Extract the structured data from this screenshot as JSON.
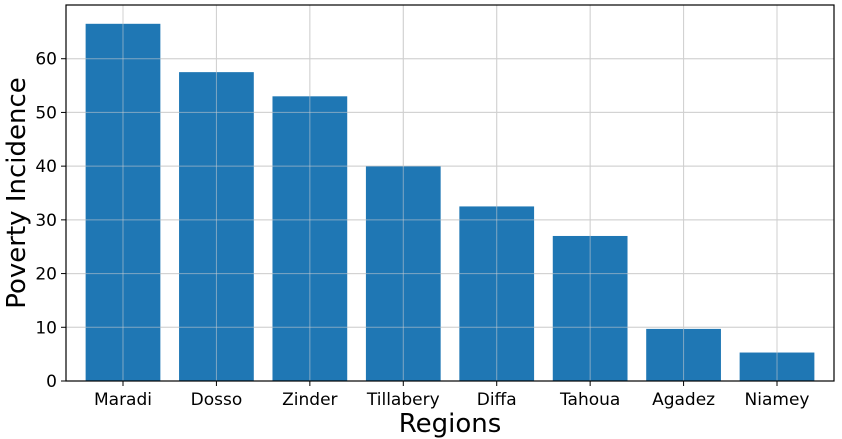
{
  "chart_data": {
    "type": "bar",
    "categories": [
      "Maradi",
      "Dosso",
      "Zinder",
      "Tillabery",
      "Diffa",
      "Tahoua",
      "Agadez",
      "Niamey"
    ],
    "values": [
      66.5,
      57.5,
      53.0,
      40.0,
      32.5,
      27.0,
      9.7,
      5.3
    ],
    "xlabel": "Regions",
    "ylabel": "Poverty Incidence",
    "ylim": [
      0,
      70
    ],
    "yticks": [
      0,
      10,
      20,
      30,
      40,
      50,
      60
    ],
    "grid": true,
    "bar_color": "#1f77b4"
  }
}
